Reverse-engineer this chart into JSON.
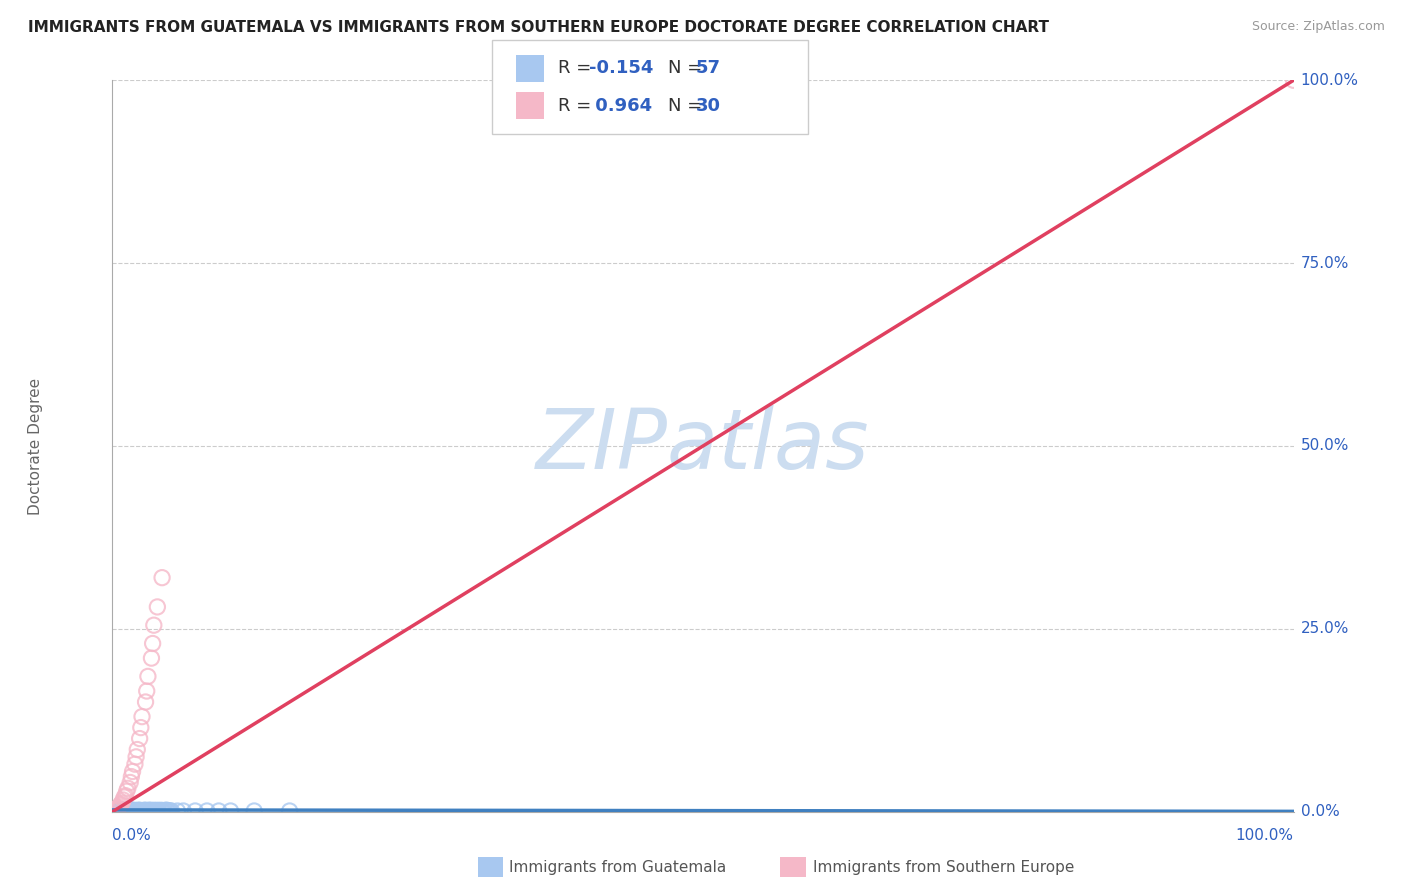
{
  "title": "IMMIGRANTS FROM GUATEMALA VS IMMIGRANTS FROM SOUTHERN EUROPE DOCTORATE DEGREE CORRELATION CHART",
  "source": "Source: ZipAtlas.com",
  "ylabel": "Doctorate Degree",
  "R_blue": -0.154,
  "N_blue": 57,
  "R_pink": 0.964,
  "N_pink": 30,
  "blue_scatter_color": "#A8C8F0",
  "pink_scatter_color": "#F5B8C8",
  "blue_line_color": "#4080C0",
  "pink_line_color": "#E04060",
  "title_color": "#222222",
  "source_color": "#999999",
  "value_color": "#3060C0",
  "grid_color": "#CCCCCC",
  "bg_color": "#FFFFFF",
  "watermark": "ZIPatlas",
  "watermark_color": "#CCDDF0",
  "ytick_values": [
    0,
    25,
    50,
    75,
    100
  ],
  "ytick_labels": [
    "0.0%",
    "25.0%",
    "50.0%",
    "75.0%",
    "100.0%"
  ],
  "blue_x": [
    0.3,
    0.5,
    0.7,
    0.9,
    1.1,
    1.3,
    1.5,
    1.7,
    1.9,
    2.1,
    2.3,
    2.5,
    2.7,
    2.9,
    3.1,
    3.3,
    3.5,
    3.7,
    3.9,
    4.1,
    4.3,
    4.5,
    4.7,
    4.9,
    0.2,
    0.4,
    0.6,
    0.8,
    1.0,
    1.2,
    1.4,
    1.6,
    1.8,
    2.0,
    2.2,
    2.4,
    2.6,
    2.8,
    3.0,
    3.2,
    3.4,
    3.6,
    3.8,
    4.0,
    4.2,
    4.4,
    4.6,
    4.8,
    5.0,
    5.5,
    6.0,
    7.0,
    8.0,
    9.0,
    10.0,
    12.0,
    15.0
  ],
  "blue_y": [
    0.2,
    0.1,
    0.3,
    0.1,
    0.2,
    0.1,
    0.3,
    0.1,
    0.2,
    0.1,
    0.2,
    0.1,
    0.2,
    0.1,
    0.2,
    0.1,
    0.2,
    0.1,
    0.1,
    0.2,
    0.1,
    0.2,
    0.1,
    0.1,
    0.1,
    0.2,
    0.1,
    0.2,
    0.1,
    0.2,
    0.1,
    0.2,
    0.1,
    0.1,
    0.2,
    0.1,
    0.1,
    0.2,
    0.1,
    0.2,
    0.1,
    0.1,
    0.2,
    0.1,
    0.1,
    0.1,
    0.2,
    0.1,
    0.1,
    0.1,
    0.1,
    0.1,
    0.1,
    0.1,
    0.1,
    0.1,
    0.1
  ],
  "pink_x": [
    0.2,
    0.5,
    0.8,
    1.1,
    1.5,
    1.9,
    2.3,
    2.8,
    3.3,
    0.3,
    0.7,
    1.0,
    1.3,
    1.7,
    2.1,
    2.5,
    3.0,
    3.5,
    0.4,
    0.6,
    0.9,
    1.2,
    1.6,
    2.0,
    2.4,
    2.9,
    3.4,
    3.8,
    4.2,
    100.0
  ],
  "pink_y": [
    0.15,
    0.6,
    1.2,
    2.2,
    4.0,
    6.5,
    10.0,
    15.0,
    21.0,
    0.3,
    1.0,
    2.0,
    3.2,
    5.5,
    8.5,
    13.0,
    18.5,
    25.5,
    0.45,
    0.8,
    1.6,
    2.8,
    4.8,
    7.5,
    11.5,
    16.5,
    23.0,
    28.0,
    32.0,
    100.0
  ],
  "xlim": [
    0,
    100
  ],
  "ylim": [
    0,
    100
  ],
  "blue_slope": -0.002,
  "blue_intercept": 0.25,
  "pink_slope": 1.0,
  "pink_intercept": 0.0
}
